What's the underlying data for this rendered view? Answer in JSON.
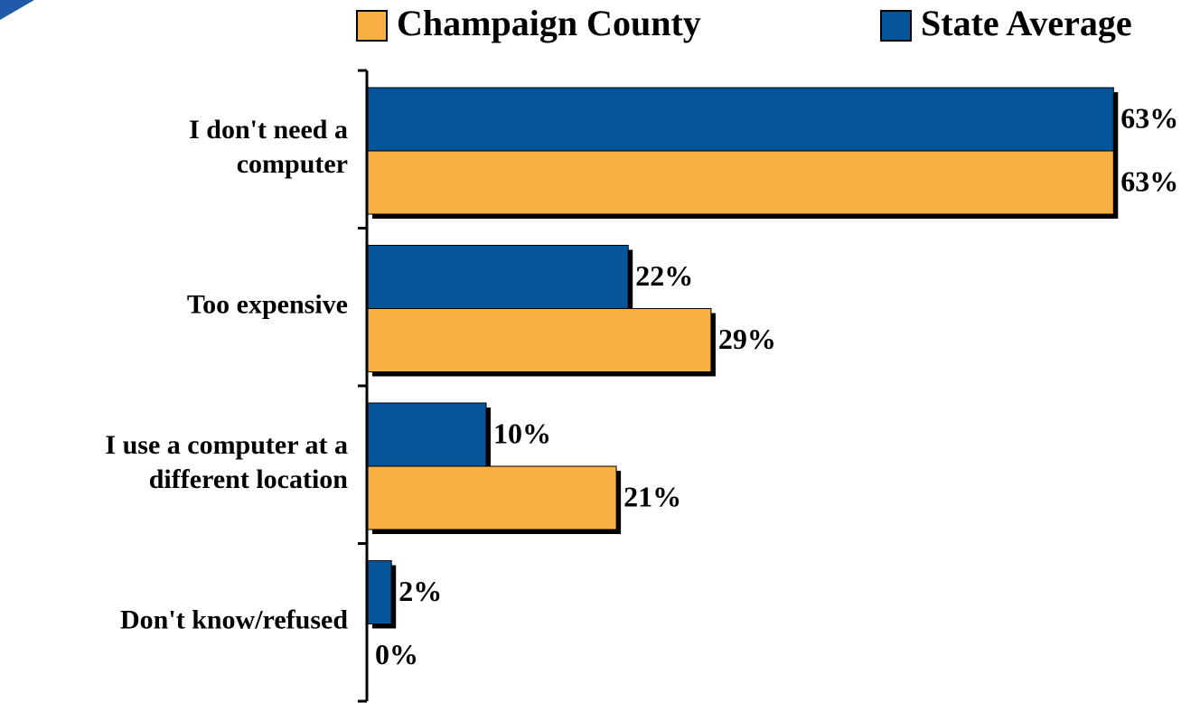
{
  "chart_data": {
    "type": "bar",
    "orientation": "horizontal",
    "categories": [
      [
        "I don't need a",
        "computer"
      ],
      [
        "Too expensive"
      ],
      [
        "I use a computer at a",
        "different location"
      ],
      [
        "Don't know/refused"
      ]
    ],
    "series": [
      {
        "name": "Champaign County",
        "color": "#f9b042",
        "values": [
          63,
          29,
          21,
          0
        ],
        "value_labels": [
          "63%",
          "29%",
          "21%",
          "0%"
        ]
      },
      {
        "name": "State Average",
        "color": "#04559a",
        "values": [
          63,
          22,
          10,
          2
        ],
        "value_labels": [
          "63%",
          "22%",
          "10%",
          "2%"
        ]
      }
    ],
    "xlim": [
      0,
      70
    ]
  }
}
